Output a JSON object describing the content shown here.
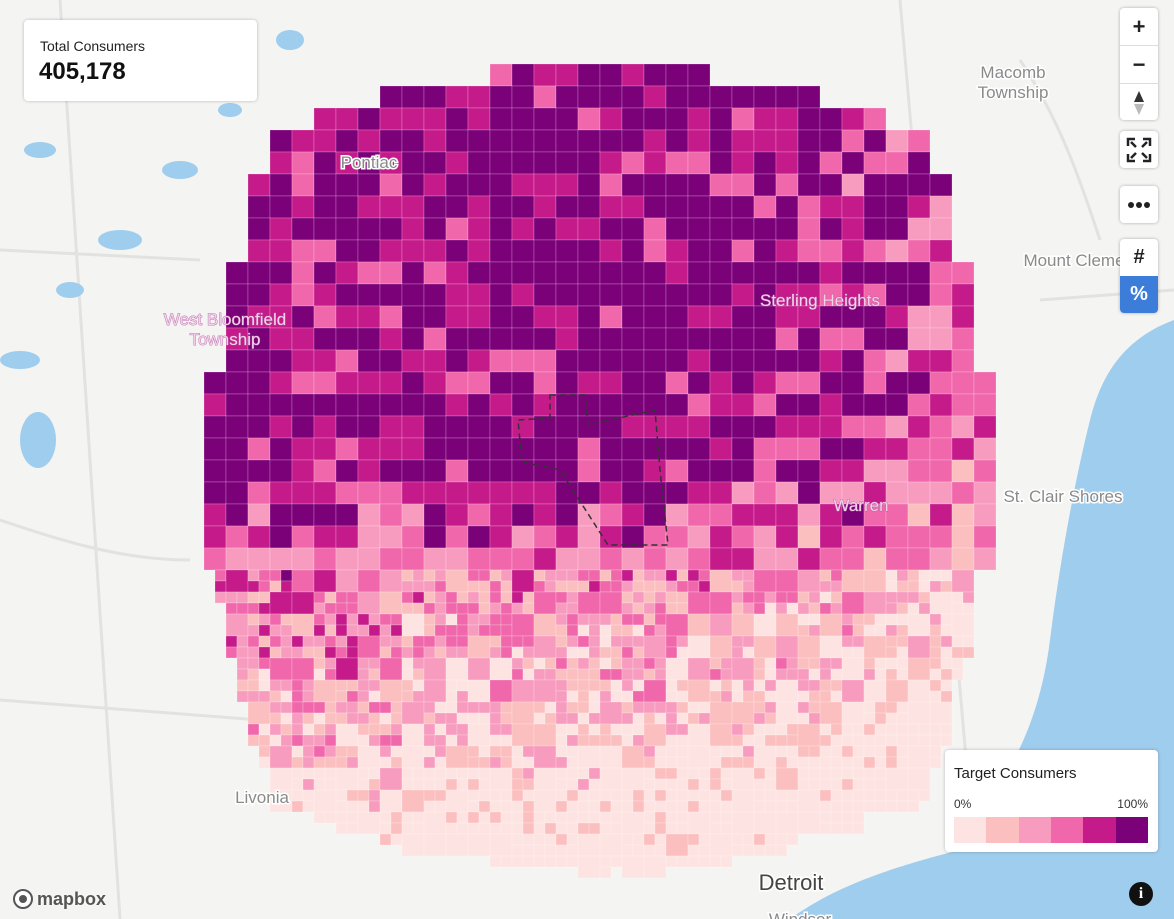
{
  "summary": {
    "label": "Total Consumers",
    "value": "405,178"
  },
  "places": [
    {
      "lines": [
        "Macomb",
        "Township"
      ]
    },
    {
      "lines": [
        "Pontiac"
      ]
    },
    {
      "lines": [
        "West Bloomfield",
        "Township"
      ]
    },
    {
      "lines": [
        "Sterling Heights"
      ]
    },
    {
      "lines": [
        "Mount Cleme"
      ]
    },
    {
      "lines": [
        "Warren"
      ]
    },
    {
      "lines": [
        "St. Clair Shores"
      ]
    },
    {
      "lines": [
        "Livonia"
      ]
    },
    {
      "lines": [
        "Detroit"
      ]
    },
    {
      "lines": [
        "Windsor"
      ]
    }
  ],
  "controls": {
    "zoom_in": "+",
    "zoom_out": "−",
    "count": "#",
    "percent": "%"
  },
  "legend": {
    "title": "Target Consumers",
    "min_label": "0%",
    "max_label": "100%",
    "colors": [
      "#fde3e1",
      "#fbbfbf",
      "#f79bbf",
      "#f068ab",
      "#c51b8a",
      "#7a0177"
    ]
  },
  "attribution": "mapbox",
  "info": "i"
}
